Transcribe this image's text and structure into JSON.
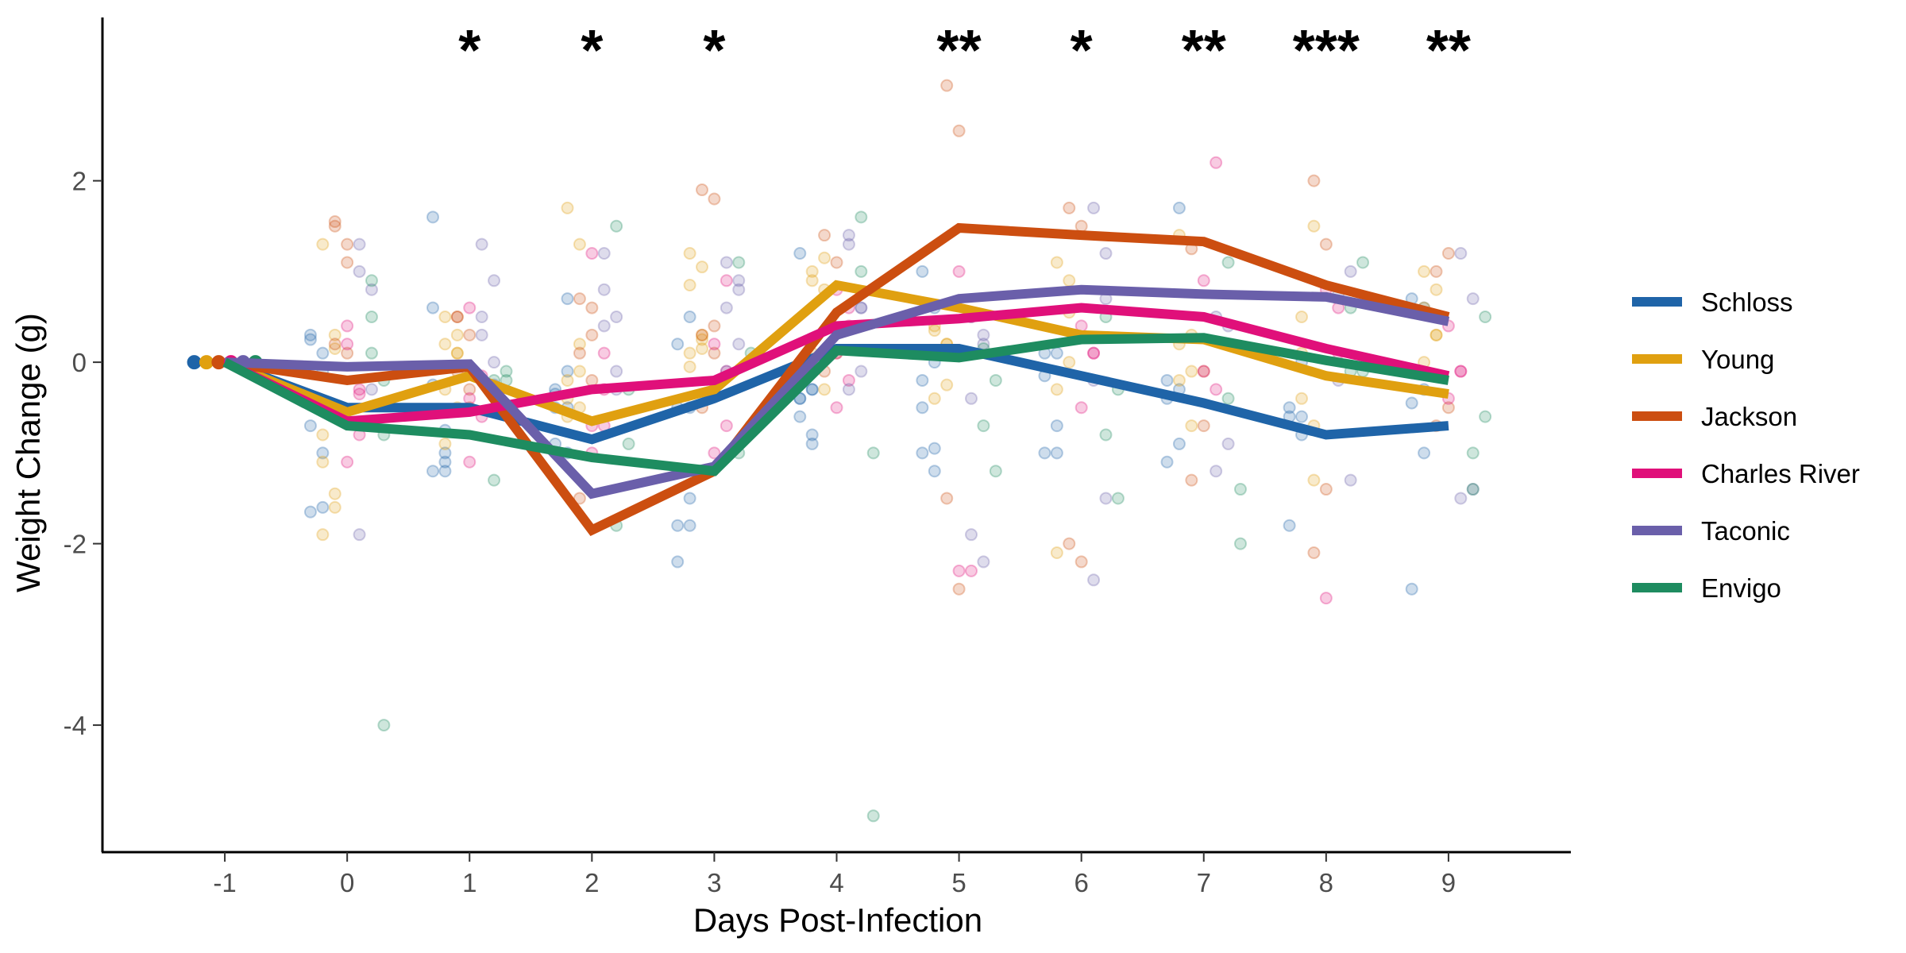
{
  "chart_data": {
    "type": "line",
    "xlabel": "Days Post-Infection",
    "ylabel": "Weight Change (g)",
    "xlim": [
      -2,
      10
    ],
    "ylim": [
      -5.4,
      3.8
    ],
    "x_ticks": [
      -1,
      0,
      1,
      2,
      3,
      4,
      5,
      6,
      7,
      8,
      9
    ],
    "y_ticks": [
      -4,
      -2,
      0,
      2
    ],
    "legend_position": "right",
    "x": [
      -1,
      0,
      1,
      2,
      3,
      4,
      5,
      6,
      7,
      8,
      9
    ],
    "series": [
      {
        "name": "Schloss",
        "color": "#1f64a8",
        "offset": -0.25,
        "values": [
          0,
          -0.5,
          -0.5,
          -0.85,
          -0.4,
          0.15,
          0.15,
          -0.15,
          -0.45,
          -0.8,
          -0.7
        ],
        "points": [
          [
            0.25,
            -1.0
          ],
          [
            -0.25,
            -1.1
          ],
          [
            -0.35,
            -1.0
          ],
          [
            -0.5,
            -0.5
          ],
          [
            -0.6,
            -0.3
          ],
          [
            -1.0,
            -1.2
          ],
          [
            -1.0,
            -1.0
          ],
          [
            -0.4,
            -0.3
          ],
          [
            -0.5,
            -0.6
          ],
          [
            -2.5,
            -1.0
          ],
          [
            -0.7,
            -0.1
          ],
          [
            0.6,
            -1.2
          ],
          [
            -0.9,
            -0.5
          ],
          [
            -2.2,
            -1.8
          ],
          [
            -0.4,
            -0.3
          ],
          [
            1.0,
            0.6
          ],
          [
            0.1,
            -0.7
          ],
          [
            -0.2,
            1.7
          ],
          [
            -1.8,
            -0.8
          ],
          [
            0.7,
            0.6
          ],
          [
            0.3,
            0.1
          ],
          [
            1.6,
            -1.0
          ],
          [
            -0.3,
            0.7
          ],
          [
            0.2,
            0.5
          ],
          [
            1.2,
            -0.9
          ],
          [
            -0.2,
            -0.95
          ],
          [
            -0.15,
            0.1
          ],
          [
            -1.1,
            -0.9
          ],
          [
            -0.6,
            0.0
          ],
          [
            -0.45,
            -0.3
          ],
          [
            -1.65,
            -1.6
          ],
          [
            -1.2,
            -0.75
          ],
          [
            -0.5,
            -0.1
          ],
          [
            -1.8,
            -1.5
          ],
          [
            -0.4,
            -0.8
          ],
          [
            -0.5,
            0.0
          ]
        ]
      },
      {
        "name": "Young",
        "color": "#e0a010",
        "offset": -0.15,
        "values": [
          0,
          -0.55,
          -0.15,
          -0.65,
          -0.3,
          0.85,
          0.6,
          0.3,
          0.25,
          -0.15,
          -0.35
        ],
        "points": [
          [
            -1.9,
            -1.45
          ],
          [
            -0.9,
            0.1
          ],
          [
            -0.2,
            -0.5
          ],
          [
            0.85,
            0.3
          ],
          [
            0.1,
            -0.3
          ],
          [
            -0.4,
            0.2
          ],
          [
            -2.1,
            0.55
          ],
          [
            -0.2,
            -0.7
          ],
          [
            0.1,
            -1.3
          ],
          [
            0.6,
            0.3
          ],
          [
            -0.8,
            -1.6
          ],
          [
            0.2,
            -0.5
          ],
          [
            1.7,
            1.3
          ],
          [
            1.2,
            1.05
          ],
          [
            0.9,
            1.15
          ],
          [
            0.4,
            0.2
          ],
          [
            1.1,
            0.9
          ],
          [
            1.4,
            0.3
          ],
          [
            0.5,
            1.5
          ],
          [
            1.0,
            0.8
          ],
          [
            1.3,
            0.3
          ],
          [
            0.5,
            0.1
          ],
          [
            -0.4,
            0.2
          ],
          [
            -0.05,
            0.25
          ],
          [
            1.0,
            0.8
          ],
          [
            0.35,
            -0.25
          ],
          [
            -0.3,
            0.0
          ],
          [
            0.2,
            -0.1
          ],
          [
            -0.4,
            -0.7
          ],
          [
            0.0,
            0.3
          ],
          [
            -1.1,
            0.15
          ],
          [
            -0.3,
            0.3
          ],
          [
            -0.6,
            -0.1
          ],
          [
            0.1,
            0.15
          ]
        ]
      },
      {
        "name": "Jackson",
        "color": "#cc4e10",
        "offset": -0.05,
        "values": [
          0,
          -0.2,
          -0.05,
          -1.85,
          -1.2,
          0.55,
          1.48,
          1.4,
          1.33,
          0.85,
          0.5
        ],
        "points": [
          [
            0.2,
            0.1
          ],
          [
            -0.1,
            -0.3
          ],
          [
            0.1,
            -0.2
          ],
          [
            0.3,
            0.4
          ],
          [
            -0.1,
            0.1
          ],
          [
            -1.5,
            -2.5
          ],
          [
            -2.0,
            -2.2
          ],
          [
            -1.3,
            -0.7
          ],
          [
            -2.1,
            -1.4
          ],
          [
            -0.7,
            -0.5
          ],
          [
            1.5,
            1.3
          ],
          [
            0.5,
            -0.5
          ],
          [
            -1.5,
            0.6
          ],
          [
            1.9,
            1.8
          ],
          [
            1.4,
            1.1
          ],
          [
            3.05,
            2.55
          ],
          [
            1.7,
            1.5
          ],
          [
            1.25,
            -0.1
          ],
          [
            2.0,
            1.3
          ],
          [
            1.0,
            1.2
          ],
          [
            1.55,
            1.1
          ],
          [
            0.5,
            0.3
          ],
          [
            0.7,
            0.3
          ],
          [
            -0.5,
            0.1
          ]
        ]
      },
      {
        "name": "Charles River",
        "color": "#e0107a",
        "offset": 0.05,
        "values": [
          0,
          -0.65,
          -0.55,
          -0.3,
          -0.2,
          0.4,
          0.48,
          0.6,
          0.5,
          0.15,
          -0.15
        ],
        "points": [
          [
            -1.1,
            -0.8
          ],
          [
            -0.4,
            -0.6
          ],
          [
            -0.7,
            -0.3
          ],
          [
            -1.0,
            -0.7
          ],
          [
            0.1,
            -0.2
          ],
          [
            -2.3,
            -2.3
          ],
          [
            0.4,
            0.1
          ],
          [
            -0.1,
            -0.3
          ],
          [
            -2.6,
            0.6
          ],
          [
            0.4,
            -0.1
          ],
          [
            0.2,
            -0.3
          ],
          [
            -1.1,
            -0.15
          ],
          [
            1.2,
            0.1
          ],
          [
            -0.3,
            0.9
          ],
          [
            0.8,
            0.6
          ],
          [
            1.0,
            0.5
          ],
          [
            -0.5,
            0.1
          ],
          [
            0.9,
            2.2
          ],
          [
            0.8,
            0.1
          ],
          [
            -0.4,
            -0.1
          ],
          [
            0.4,
            -0.35
          ],
          [
            0.6,
            -0.2
          ],
          [
            -1.0,
            -0.7
          ],
          [
            0.2,
            -0.1
          ],
          [
            -0.5,
            0.4
          ]
        ]
      },
      {
        "name": "Taconic",
        "color": "#6a5faa",
        "offset": 0.15,
        "values": [
          0,
          -0.05,
          -0.02,
          -1.45,
          -1.15,
          0.3,
          0.7,
          0.8,
          0.75,
          0.72,
          0.45
        ],
        "points": [
          [
            1.3,
            -0.3
          ],
          [
            0.3,
            -0.25
          ],
          [
            0.8,
            -0.1
          ],
          [
            0.6,
            0.2
          ],
          [
            -0.3,
            -0.1
          ],
          [
            -1.9,
            -2.2
          ],
          [
            -2.4,
            -1.5
          ],
          [
            -1.2,
            -0.9
          ],
          [
            0.75,
            -1.3
          ],
          [
            -1.5,
            -1.4
          ],
          [
            -1.9,
            -0.7
          ],
          [
            1.3,
            0.0
          ],
          [
            0.4,
            -0.3
          ],
          [
            1.1,
            0.9
          ],
          [
            1.4,
            0.6
          ],
          [
            -0.4,
            0.3
          ],
          [
            1.7,
            1.2
          ],
          [
            0.5,
            0.4
          ],
          [
            -0.2,
            1.0
          ],
          [
            1.2,
            0.7
          ],
          [
            1.0,
            0.8
          ],
          [
            0.5,
            0.9
          ],
          [
            1.2,
            0.5
          ],
          [
            -0.1,
            0.8
          ],
          [
            1.3,
            0.6
          ],
          [
            0.5,
            0.2
          ],
          [
            -0.2,
            0.7
          ]
        ]
      },
      {
        "name": "Envigo",
        "color": "#1e8c60",
        "offset": 0.25,
        "values": [
          0,
          -0.7,
          -0.8,
          -1.05,
          -1.2,
          0.13,
          0.05,
          0.25,
          0.27,
          0.02,
          -0.2
        ],
        "points": [
          [
            0.5,
            -4.0
          ],
          [
            -0.2,
            -0.2
          ],
          [
            -1.8,
            -0.3
          ],
          [
            -1.0,
            -0.7
          ],
          [
            1.0,
            -5.0
          ],
          [
            0.15,
            -1.2
          ],
          [
            -0.8,
            -1.5
          ],
          [
            -0.4,
            -2.0
          ],
          [
            -0.1,
            1.1
          ],
          [
            -1.0,
            0.5
          ],
          [
            0.9,
            -0.8
          ],
          [
            -1.3,
            -0.1
          ],
          [
            1.5,
            -0.9
          ],
          [
            1.1,
            0.1
          ],
          [
            1.6,
            -1.0
          ],
          [
            -0.7,
            -0.2
          ],
          [
            0.5,
            -0.3
          ],
          [
            1.1,
            -1.4
          ],
          [
            0.6,
            -0.1
          ],
          [
            -1.4,
            -0.6
          ],
          [
            0.1,
            -0.2
          ]
        ]
      }
    ],
    "significance": [
      {
        "x": 1,
        "label": "*"
      },
      {
        "x": 2,
        "label": "*"
      },
      {
        "x": 3,
        "label": "*"
      },
      {
        "x": 5,
        "label": "**"
      },
      {
        "x": 6,
        "label": "*"
      },
      {
        "x": 7,
        "label": "**"
      },
      {
        "x": 8,
        "label": "***"
      },
      {
        "x": 9,
        "label": "**"
      }
    ]
  }
}
